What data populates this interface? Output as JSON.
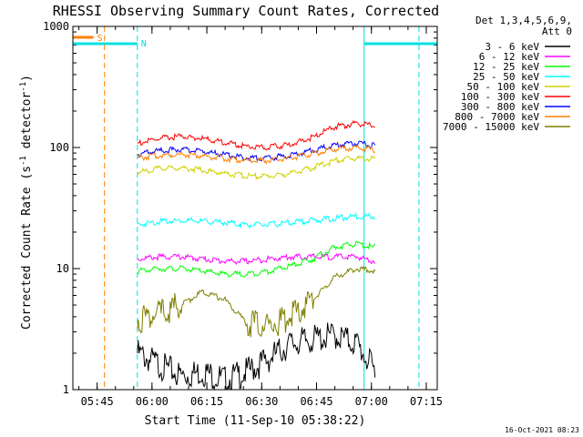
{
  "chart_data": {
    "type": "line",
    "title": "RHESSI Observing Summary Count Rates, Corrected",
    "xlabel": "Start Time (11-Sep-10 05:38:22)",
    "ylabel": "Corrected Count Rate (s",
    "ylabel_sup": "-1",
    "ylabel_mid": " detector",
    "ylabel_end": ")",
    "y_scale": "log",
    "ylim": [
      1,
      1000
    ],
    "xlim": [
      "05:38:22",
      "07:18:00"
    ],
    "x_ticks": [
      "05:45",
      "06:00",
      "06:15",
      "06:30",
      "06:45",
      "07:00",
      "07:15"
    ],
    "y_ticks": [
      "1",
      "10",
      "100",
      "1000"
    ],
    "legend_header": [
      "Det 1,3,4,5,6,9,",
      "Att 0"
    ],
    "legend_position": "top-right",
    "timestamp": "16-Oct-2021 08:23",
    "markers": [
      {
        "label": "S",
        "time": "05:47",
        "color": "#ff7f00",
        "style": "dashed"
      },
      {
        "label": "N",
        "time": "05:56",
        "color": "#00e0e0",
        "style": "dashed"
      },
      {
        "label": "",
        "time": "07:13",
        "color": "#00e0e0",
        "style": "dashed"
      }
    ],
    "night_bars": [
      {
        "label": "N",
        "start": "05:38:22",
        "end": "05:56",
        "color": "#00e0e0"
      },
      {
        "label": "",
        "start": "06:58",
        "end": "07:18",
        "color": "#00e0e0"
      }
    ],
    "saa_bar": {
      "label": "S",
      "start": "05:38:22",
      "end": "05:44",
      "color": "#ff7f00"
    },
    "x_points": [
      "05:56",
      "06:02",
      "06:08",
      "06:14",
      "06:20",
      "06:26",
      "06:32",
      "06:38",
      "06:44",
      "06:50",
      "06:56",
      "07:01"
    ],
    "series": [
      {
        "name": "3 - 6 keV",
        "color": "#000000",
        "values": [
          2.0,
          1.6,
          1.3,
          1.4,
          1.2,
          1.4,
          1.8,
          2.4,
          2.6,
          2.8,
          2.4,
          1.4
        ]
      },
      {
        "name": "6 - 12 keV",
        "color": "#ff00ff",
        "values": [
          12,
          12.5,
          12.5,
          12,
          11.5,
          11.5,
          12,
          12.5,
          12.5,
          12.5,
          12.5,
          11.5
        ]
      },
      {
        "name": "12 - 25 keV",
        "color": "#00ff00",
        "values": [
          9.5,
          10,
          10,
          9.5,
          9,
          9,
          9.5,
          10.5,
          12,
          15,
          16,
          15
        ]
      },
      {
        "name": "25 - 50 keV",
        "color": "#00ffff",
        "values": [
          23,
          24.5,
          25,
          24.5,
          24,
          23,
          23,
          24,
          25,
          26,
          27,
          27
        ]
      },
      {
        "name": "50 - 100 keV",
        "color": "#d0d000",
        "values": [
          62,
          67,
          68,
          65,
          61,
          58,
          58,
          61,
          68,
          78,
          82,
          80
        ]
      },
      {
        "name": "100 - 300 keV",
        "color": "#ff0000",
        "values": [
          108,
          118,
          124,
          118,
          110,
          102,
          100,
          106,
          122,
          148,
          158,
          150
        ]
      },
      {
        "name": "300 - 800 keV",
        "color": "#0000ff",
        "values": [
          88,
          94,
          96,
          93,
          87,
          82,
          82,
          86,
          95,
          105,
          108,
          104
        ]
      },
      {
        "name": "800 - 7000 keV",
        "color": "#ff7f00",
        "values": [
          82,
          86,
          88,
          85,
          81,
          78,
          78,
          82,
          89,
          97,
          100,
          95
        ]
      },
      {
        "name": "7000 - 15000 keV",
        "color": "#808000",
        "values": [
          3.8,
          4.2,
          5.0,
          6.5,
          5.5,
          3.5,
          3.4,
          4.0,
          5.5,
          8.5,
          10,
          9.5
        ]
      }
    ]
  }
}
